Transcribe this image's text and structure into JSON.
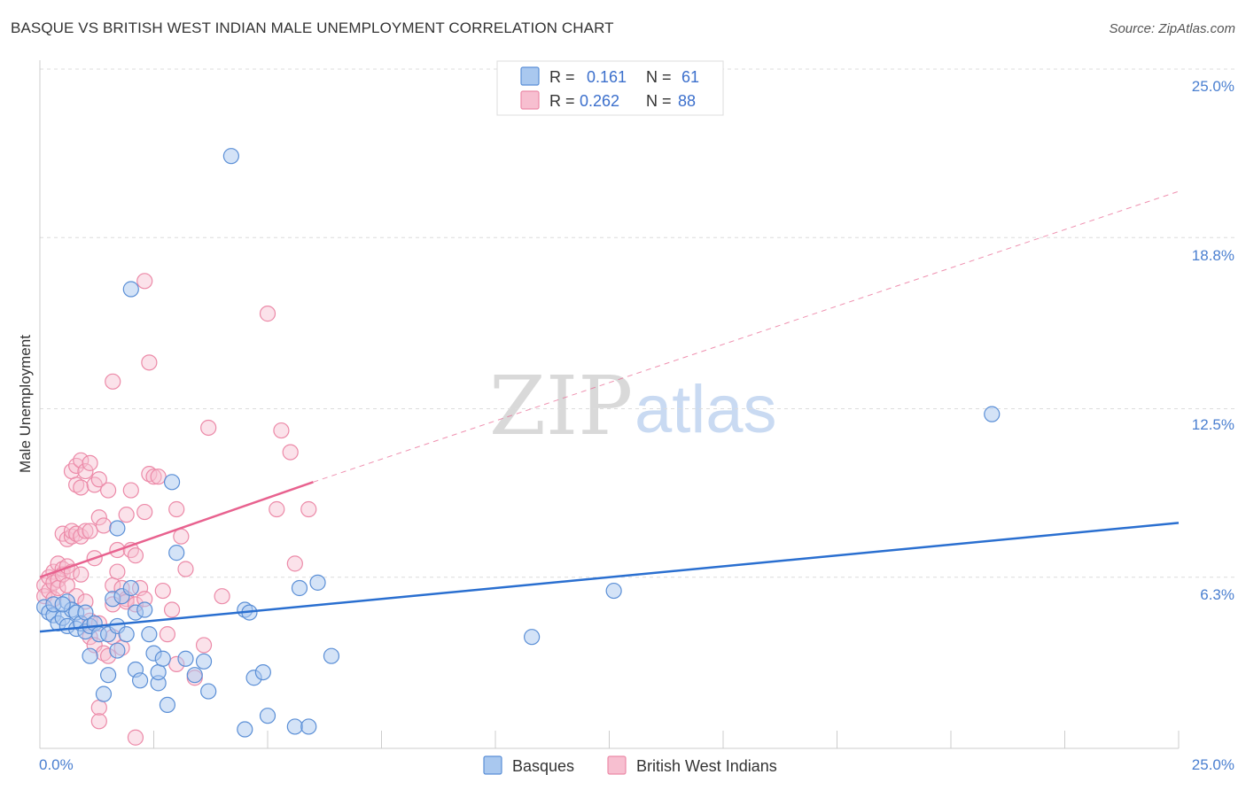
{
  "header": {
    "title": "BASQUE VS BRITISH WEST INDIAN MALE UNEMPLOYMENT CORRELATION CHART",
    "source": "Source: ZipAtlas.com"
  },
  "watermark": {
    "zip": "ZIP",
    "atlas": "atlas"
  },
  "legend": {
    "rows": [
      {
        "r_label": "R =",
        "r_value": "0.161",
        "n_label": "N =",
        "n_value": "61"
      },
      {
        "r_label": "R =",
        "r_value": "0.262",
        "n_label": "N =",
        "n_value": "88"
      }
    ]
  },
  "bottom_legend": {
    "series1": "Basques",
    "series2": "British West Indians"
  },
  "colors": {
    "basque_fill": "#a9c8ef",
    "basque_stroke": "#5b8fd6",
    "basque_line": "#2a6fd0",
    "bwi_fill": "#f7bfd0",
    "bwi_stroke": "#ec8aa8",
    "bwi_line": "#e8628f"
  },
  "chart_data": {
    "type": "scatter",
    "title": "BASQUE VS BRITISH WEST INDIAN MALE UNEMPLOYMENT CORRELATION CHART",
    "xlabel": "",
    "ylabel": "Male Unemployment",
    "xlim": [
      0,
      25
    ],
    "ylim": [
      0,
      25
    ],
    "x_tick_labels": [
      "0.0%",
      "25.0%"
    ],
    "y_ticks": [
      6.3,
      12.5,
      18.8,
      25.0
    ],
    "y_tick_labels": [
      "6.3%",
      "12.5%",
      "18.8%",
      "25.0%"
    ],
    "grid": true,
    "legend_position": "top-center",
    "series": [
      {
        "name": "Basques",
        "r": 0.161,
        "n": 61,
        "trend": {
          "x": [
            0,
            25
          ],
          "y": [
            4.3,
            8.3
          ],
          "style": "solid"
        },
        "points": [
          [
            0.1,
            5.2
          ],
          [
            0.2,
            5.0
          ],
          [
            0.3,
            4.9
          ],
          [
            0.3,
            5.3
          ],
          [
            0.4,
            4.6
          ],
          [
            0.5,
            4.8
          ],
          [
            0.6,
            5.4
          ],
          [
            0.6,
            4.5
          ],
          [
            0.7,
            5.1
          ],
          [
            0.8,
            5.0
          ],
          [
            0.8,
            4.4
          ],
          [
            0.9,
            4.6
          ],
          [
            1.0,
            4.3
          ],
          [
            1.0,
            5.0
          ],
          [
            1.1,
            4.5
          ],
          [
            1.1,
            3.4
          ],
          [
            1.2,
            4.6
          ],
          [
            1.3,
            4.2
          ],
          [
            1.4,
            2.0
          ],
          [
            1.5,
            4.2
          ],
          [
            1.5,
            2.7
          ],
          [
            1.6,
            5.5
          ],
          [
            1.7,
            3.6
          ],
          [
            1.7,
            4.5
          ],
          [
            1.8,
            5.6
          ],
          [
            1.9,
            4.2
          ],
          [
            2.0,
            5.9
          ],
          [
            2.1,
            5.0
          ],
          [
            2.1,
            2.9
          ],
          [
            2.2,
            2.5
          ],
          [
            2.3,
            5.1
          ],
          [
            2.4,
            4.2
          ],
          [
            2.5,
            3.5
          ],
          [
            2.6,
            2.4
          ],
          [
            2.6,
            2.8
          ],
          [
            2.7,
            3.3
          ],
          [
            2.8,
            1.6
          ],
          [
            2.9,
            9.8
          ],
          [
            3.0,
            7.2
          ],
          [
            3.2,
            3.3
          ],
          [
            3.4,
            2.7
          ],
          [
            3.6,
            3.2
          ],
          [
            3.7,
            2.1
          ],
          [
            4.2,
            21.8
          ],
          [
            4.5,
            5.1
          ],
          [
            4.5,
            0.7
          ],
          [
            4.6,
            5.0
          ],
          [
            4.7,
            2.6
          ],
          [
            4.9,
            2.8
          ],
          [
            5.0,
            1.2
          ],
          [
            5.6,
            0.8
          ],
          [
            5.7,
            5.9
          ],
          [
            5.9,
            0.8
          ],
          [
            6.1,
            6.1
          ],
          [
            6.4,
            3.4
          ],
          [
            10.8,
            4.1
          ],
          [
            12.6,
            5.8
          ],
          [
            20.9,
            12.3
          ],
          [
            0.5,
            5.3
          ],
          [
            2.0,
            16.9
          ],
          [
            1.7,
            8.1
          ]
        ]
      },
      {
        "name": "British West Indians",
        "r": 0.262,
        "n": 88,
        "trend": {
          "x": [
            0,
            6
          ],
          "y": [
            6.3,
            9.8
          ],
          "style": "solid",
          "extended_x": [
            6,
            25
          ],
          "extended_y": [
            9.8,
            20.5
          ],
          "extended_style": "dashed"
        },
        "points": [
          [
            0.1,
            6.0
          ],
          [
            0.1,
            5.6
          ],
          [
            0.2,
            6.3
          ],
          [
            0.2,
            5.8
          ],
          [
            0.3,
            6.5
          ],
          [
            0.3,
            6.1
          ],
          [
            0.3,
            5.5
          ],
          [
            0.4,
            6.8
          ],
          [
            0.4,
            6.2
          ],
          [
            0.4,
            5.9
          ],
          [
            0.5,
            6.6
          ],
          [
            0.5,
            6.4
          ],
          [
            0.5,
            7.9
          ],
          [
            0.6,
            7.7
          ],
          [
            0.6,
            6.7
          ],
          [
            0.6,
            6.0
          ],
          [
            0.7,
            10.2
          ],
          [
            0.7,
            7.8
          ],
          [
            0.7,
            8.0
          ],
          [
            0.7,
            6.5
          ],
          [
            0.8,
            9.7
          ],
          [
            0.8,
            10.4
          ],
          [
            0.8,
            7.9
          ],
          [
            0.8,
            5.6
          ],
          [
            0.9,
            10.6
          ],
          [
            0.9,
            9.6
          ],
          [
            0.9,
            7.8
          ],
          [
            0.9,
            6.4
          ],
          [
            1.0,
            10.2
          ],
          [
            1.0,
            8.0
          ],
          [
            1.0,
            5.4
          ],
          [
            1.1,
            10.5
          ],
          [
            1.1,
            8.0
          ],
          [
            1.1,
            4.7
          ],
          [
            1.1,
            4.1
          ],
          [
            1.2,
            9.7
          ],
          [
            1.2,
            7.0
          ],
          [
            1.2,
            3.8
          ],
          [
            1.3,
            9.9
          ],
          [
            1.3,
            8.5
          ],
          [
            1.3,
            4.6
          ],
          [
            1.3,
            1.5
          ],
          [
            1.3,
            1.0
          ],
          [
            1.4,
            8.2
          ],
          [
            1.4,
            3.5
          ],
          [
            1.5,
            9.5
          ],
          [
            1.5,
            3.4
          ],
          [
            1.6,
            13.5
          ],
          [
            1.6,
            6.0
          ],
          [
            1.6,
            5.3
          ],
          [
            1.6,
            4.1
          ],
          [
            1.7,
            7.3
          ],
          [
            1.7,
            6.5
          ],
          [
            1.8,
            5.9
          ],
          [
            1.9,
            8.6
          ],
          [
            1.9,
            5.5
          ],
          [
            1.9,
            5.4
          ],
          [
            2.0,
            9.5
          ],
          [
            2.0,
            7.3
          ],
          [
            2.1,
            7.1
          ],
          [
            2.1,
            5.3
          ],
          [
            2.1,
            0.4
          ],
          [
            2.2,
            5.9
          ],
          [
            2.3,
            5.5
          ],
          [
            2.3,
            8.7
          ],
          [
            2.3,
            17.2
          ],
          [
            2.4,
            10.1
          ],
          [
            2.4,
            14.2
          ],
          [
            2.5,
            10.0
          ],
          [
            2.7,
            5.8
          ],
          [
            2.8,
            4.2
          ],
          [
            2.9,
            5.1
          ],
          [
            3.0,
            8.8
          ],
          [
            3.1,
            7.8
          ],
          [
            3.2,
            6.6
          ],
          [
            3.4,
            2.6
          ],
          [
            3.6,
            3.8
          ],
          [
            3.7,
            11.8
          ],
          [
            4.0,
            5.6
          ],
          [
            5.0,
            16.0
          ],
          [
            5.2,
            8.8
          ],
          [
            5.3,
            11.7
          ],
          [
            5.5,
            10.9
          ],
          [
            5.6,
            6.8
          ],
          [
            5.9,
            8.8
          ],
          [
            3.0,
            3.1
          ],
          [
            2.6,
            10.0
          ],
          [
            1.8,
            3.7
          ]
        ]
      }
    ]
  }
}
